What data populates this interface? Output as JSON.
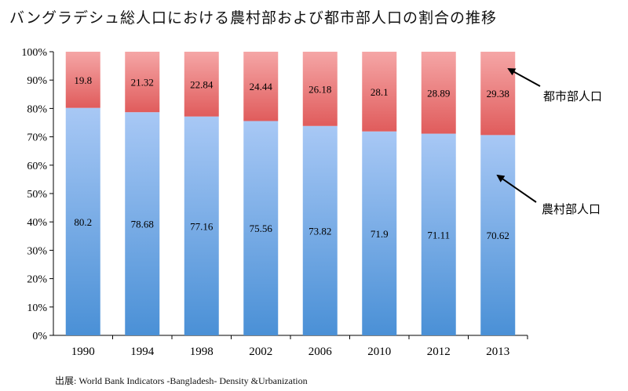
{
  "title": "バングラデシュ総人口における農村部および都市部人口の割合の推移",
  "source": "出展: World Bank Indicators -Bangladesh- Density &Urbanization",
  "colors": {
    "rural_top": "#a8c8f5",
    "rural_bottom": "#4a90d6",
    "urban_top": "#f5a6a6",
    "urban_bottom": "#e05c5c"
  },
  "chart_data": {
    "type": "bar",
    "stacked": true,
    "categories": [
      "1990",
      "1994",
      "1998",
      "2002",
      "2006",
      "2010",
      "2012",
      "2013"
    ],
    "series": [
      {
        "name": "農村部人口",
        "values": [
          80.2,
          78.68,
          77.16,
          75.56,
          73.82,
          71.9,
          71.11,
          70.62
        ]
      },
      {
        "name": "都市部人口",
        "values": [
          19.8,
          21.32,
          22.84,
          24.44,
          26.18,
          28.1,
          28.89,
          29.38
        ]
      }
    ],
    "ylim": [
      0,
      100
    ],
    "yticks": [
      "0%",
      "10%",
      "20%",
      "30%",
      "40%",
      "50%",
      "60%",
      "70%",
      "80%",
      "90%",
      "100%"
    ],
    "grid": false,
    "annotations": [
      "都市部人口",
      "農村部人口"
    ]
  }
}
